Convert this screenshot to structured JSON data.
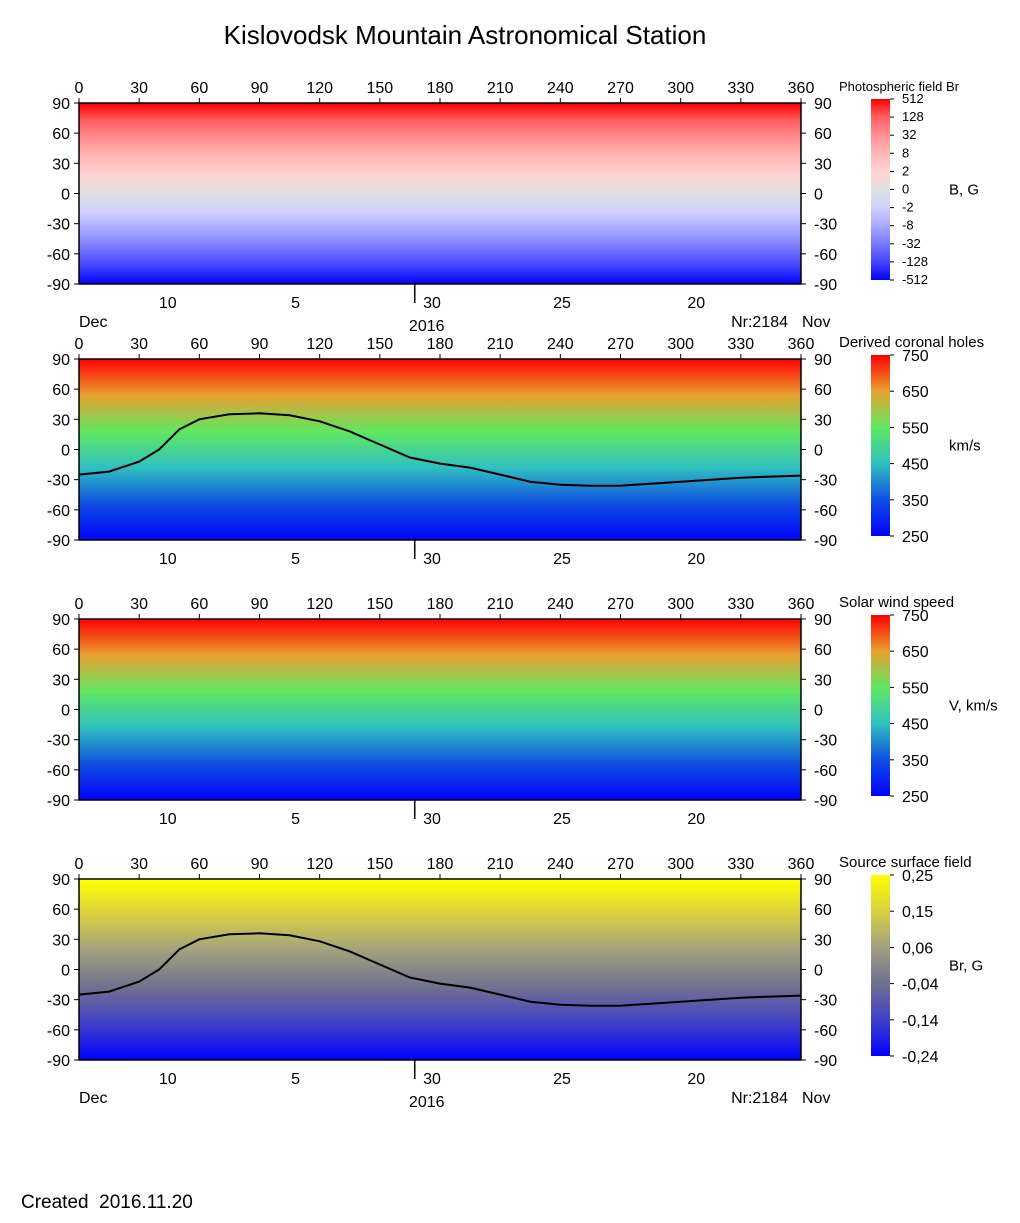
{
  "title": "Kislovodsk Mountain Astronomical Station",
  "created": "Created  2016.11.20",
  "chart_data": [
    {
      "type": "heatmap",
      "name": "photospheric",
      "title": "Photospheric field Br",
      "colorbar_label": "B, G",
      "colorbar_ticks": [
        "512",
        "128",
        "32",
        "8",
        "2",
        "0",
        "-2",
        "-8",
        "-32",
        "-128",
        "-512"
      ],
      "x_ticks": [
        "0",
        "30",
        "60",
        "90",
        "120",
        "150",
        "180",
        "210",
        "240",
        "270",
        "300",
        "330",
        "360"
      ],
      "y_ticks": [
        "90",
        "60",
        "30",
        "0",
        "-30",
        "-60",
        "-90"
      ],
      "date_ticks": [
        "10",
        "5",
        "30",
        "25",
        "20"
      ],
      "date_left": "Dec",
      "date_right": "Nov",
      "year": "2016",
      "rotation": "Nr:2184",
      "xlim": [
        0,
        360
      ],
      "ylim": [
        -90,
        90
      ],
      "neutral_line": false,
      "colors": [
        "#ff0000",
        "#ff6060",
        "#ff9090",
        "#ffb8b8",
        "#ffd4d4",
        "#e0e0e0",
        "#d0d0ff",
        "#a8a8ff",
        "#7878ff",
        "#4444ff",
        "#0000ff"
      ]
    },
    {
      "type": "heatmap",
      "name": "coronal-holes",
      "title": "Derived coronal holes",
      "colorbar_label": "km/s",
      "colorbar_ticks": [
        "750",
        "650",
        "550",
        "450",
        "350",
        "250"
      ],
      "x_ticks": [
        "0",
        "30",
        "60",
        "90",
        "120",
        "150",
        "180",
        "210",
        "240",
        "270",
        "300",
        "330",
        "360"
      ],
      "y_ticks": [
        "90",
        "60",
        "30",
        "0",
        "-30",
        "-60",
        "-90"
      ],
      "date_ticks": [
        "10",
        "5",
        "30",
        "25",
        "20"
      ],
      "xlim": [
        0,
        360
      ],
      "ylim": [
        -90,
        90
      ],
      "neutral_line": true,
      "colors": [
        "#ff0000",
        "#e8a030",
        "#60e860",
        "#30c0c0",
        "#1050e0",
        "#0000ff"
      ]
    },
    {
      "type": "heatmap",
      "name": "solar-wind",
      "title": "Solar wind speed",
      "colorbar_label": "V, km/s",
      "colorbar_ticks": [
        "750",
        "650",
        "550",
        "450",
        "350",
        "250"
      ],
      "x_ticks": [
        "0",
        "30",
        "60",
        "90",
        "120",
        "150",
        "180",
        "210",
        "240",
        "270",
        "300",
        "330",
        "360"
      ],
      "y_ticks": [
        "90",
        "60",
        "30",
        "0",
        "-30",
        "-60",
        "-90"
      ],
      "date_ticks": [
        "10",
        "5",
        "30",
        "25",
        "20"
      ],
      "xlim": [
        0,
        360
      ],
      "ylim": [
        -90,
        90
      ],
      "neutral_line": false,
      "colors": [
        "#ff0000",
        "#e8a030",
        "#60e860",
        "#30c0c0",
        "#1050e0",
        "#0000ff"
      ]
    },
    {
      "type": "heatmap",
      "name": "source-surface",
      "title": "Source surface field",
      "colorbar_label": "Br, G",
      "colorbar_ticks": [
        "0,25",
        "0,15",
        "0,06",
        "-0,04",
        "-0,14",
        "-0,24"
      ],
      "x_ticks": [
        "0",
        "30",
        "60",
        "90",
        "120",
        "150",
        "180",
        "210",
        "240",
        "270",
        "300",
        "330",
        "360"
      ],
      "y_ticks": [
        "90",
        "60",
        "30",
        "0",
        "-30",
        "-60",
        "-90"
      ],
      "date_ticks": [
        "10",
        "5",
        "30",
        "25",
        "20"
      ],
      "date_left": "Dec",
      "date_right": "Nov",
      "year": "2016",
      "rotation": "Nr:2184",
      "xlim": [
        0,
        360
      ],
      "ylim": [
        -90,
        90
      ],
      "neutral_line": true,
      "colors": [
        "#ffff00",
        "#d8d040",
        "#a0a080",
        "#707090",
        "#4040c8",
        "#0000ff"
      ]
    }
  ],
  "neutral_line": {
    "x": [
      0,
      15,
      30,
      40,
      45,
      50,
      60,
      75,
      90,
      105,
      120,
      135,
      150,
      165,
      180,
      195,
      210,
      225,
      240,
      255,
      270,
      285,
      300,
      315,
      330,
      345,
      360
    ],
    "y": [
      -25,
      -22,
      -12,
      0,
      10,
      20,
      30,
      35,
      36,
      34,
      28,
      18,
      5,
      -8,
      -14,
      -18,
      -25,
      -32,
      -35,
      -36,
      -36,
      -34,
      -32,
      -30,
      -28,
      -27,
      -26
    ]
  }
}
